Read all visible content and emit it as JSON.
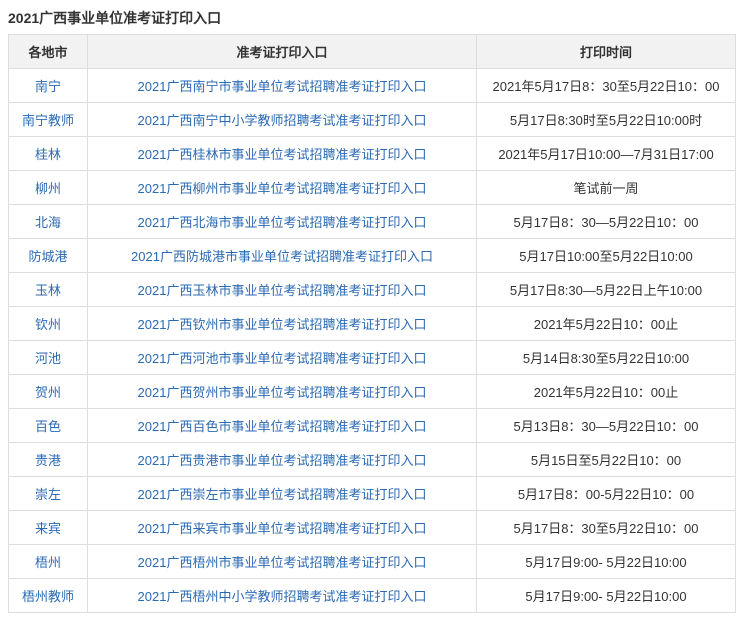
{
  "title": "2021广西事业单位准考证打印入口",
  "columns": [
    "各地市",
    "准考证打印入口",
    "打印时间"
  ],
  "rows": [
    {
      "city": "南宁",
      "entry": "2021广西南宁市事业单位考试招聘准考证打印入口",
      "time": "2021年5月17日8：30至5月22日10：00"
    },
    {
      "city": "南宁教师",
      "entry": "2021广西南宁中小学教师招聘考试准考证打印入口",
      "time": "5月17日8:30时至5月22日10:00时"
    },
    {
      "city": "桂林",
      "entry": "2021广西桂林市事业单位考试招聘准考证打印入口",
      "time": "2021年5月17日10:00—7月31日17:00"
    },
    {
      "city": "柳州",
      "entry": "2021广西柳州市事业单位考试招聘准考证打印入口",
      "time": "笔试前一周"
    },
    {
      "city": "北海",
      "entry": "2021广西北海市事业单位考试招聘准考证打印入口",
      "time": "5月17日8：30—5月22日10：00"
    },
    {
      "city": "防城港",
      "entry": "2021广西防城港市事业单位考试招聘准考证打印入口",
      "time": "5月17日10:00至5月22日10:00"
    },
    {
      "city": "玉林",
      "entry": "2021广西玉林市事业单位考试招聘准考证打印入口",
      "time": "5月17日8:30—5月22日上午10:00"
    },
    {
      "city": "钦州",
      "entry": "2021广西钦州市事业单位考试招聘准考证打印入口",
      "time": "2021年5月22日10：00止"
    },
    {
      "city": "河池",
      "entry": "2021广西河池市事业单位考试招聘准考证打印入口",
      "time": "5月14日8:30至5月22日10:00"
    },
    {
      "city": "贺州",
      "entry": "2021广西贺州市事业单位考试招聘准考证打印入口",
      "time": "2021年5月22日10：00止"
    },
    {
      "city": "百色",
      "entry": "2021广西百色市事业单位考试招聘准考证打印入口",
      "time": "5月13日8：30—5月22日10：00"
    },
    {
      "city": "贵港",
      "entry": "2021广西贵港市事业单位考试招聘准考证打印入口",
      "time": "5月15日至5月22日10：00"
    },
    {
      "city": "崇左",
      "entry": "2021广西崇左市事业单位考试招聘准考证打印入口",
      "time": "5月17日8：00-5月22日10：00"
    },
    {
      "city": "来宾",
      "entry": "2021广西来宾市事业单位考试招聘准考证打印入口",
      "time": "5月17日8：30至5月22日10：00"
    },
    {
      "city": "梧州",
      "entry": "2021广西梧州市事业单位考试招聘准考证打印入口",
      "time": "5月17日9:00- 5月22日10:00"
    },
    {
      "city": "梧州教师",
      "entry": "2021广西梧州中小学教师招聘考试准考证打印入口",
      "time": "5月17日9:00- 5月22日10:00"
    }
  ],
  "colors": {
    "header_bg": "#f2f2f2",
    "border": "#dddddd",
    "link": "#2b6ab3",
    "text": "#333333"
  }
}
